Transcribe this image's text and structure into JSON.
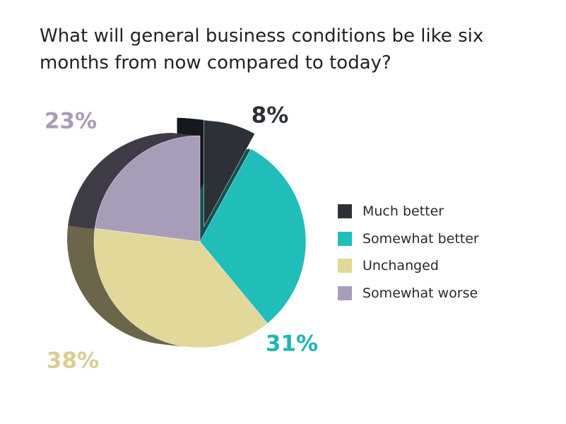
{
  "title": "What will general business conditions be like six months from now compared to today?",
  "chart_data": {
    "type": "pie",
    "title": "What will general business conditions be like six months from now compared to today?",
    "categories": [
      "Much better",
      "Somewhat better",
      "Unchanged",
      "Somewhat worse"
    ],
    "values": [
      8,
      31,
      38,
      23
    ],
    "labels": [
      "8%",
      "31%",
      "38%",
      "23%"
    ],
    "colors": [
      "#2b3137",
      "#21bdb9",
      "#e1d899",
      "#a89db8"
    ],
    "label_colors": [
      "#2b3137",
      "#1fb5b2",
      "#d8cf92",
      "#a89db8"
    ],
    "side_colors": [
      "#15181c",
      "#15524f",
      "#6b664a",
      "#3f3b47"
    ],
    "exploded": "Much better",
    "legend_position": "right"
  }
}
